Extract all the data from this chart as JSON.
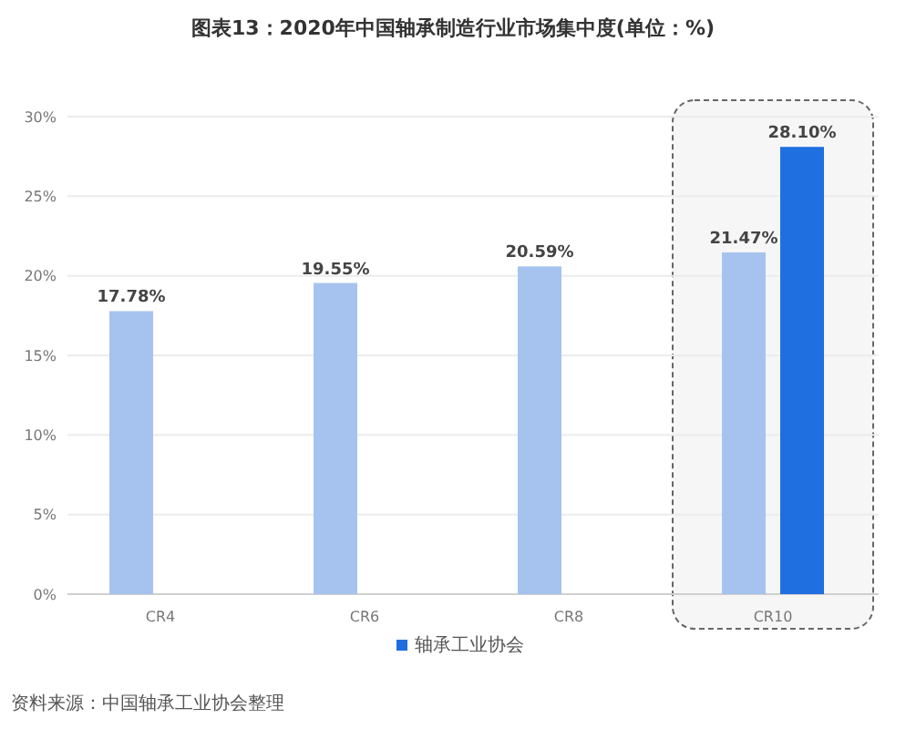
{
  "chart_data": {
    "type": "bar",
    "title": "图表13：2020年中国轴承制造行业市场集中度(单位：%)",
    "categories": [
      "CR4",
      "CR6",
      "CR8",
      "CR10"
    ],
    "series": [
      {
        "color": "#a6c3f0",
        "values": [
          17.78,
          19.55,
          20.59,
          21.47
        ],
        "value_labels": [
          "17.78%",
          "19.55%",
          "20.59%",
          "21.47%"
        ]
      },
      {
        "name": "轴承工业协会",
        "color": "#1f6fe0",
        "values": [
          null,
          null,
          null,
          28.1
        ],
        "value_labels": [
          null,
          null,
          null,
          "28.10%"
        ]
      }
    ],
    "ylim": [
      0,
      30
    ],
    "yticks": [
      {
        "value": 0,
        "label": "0%"
      },
      {
        "value": 5,
        "label": "5%"
      },
      {
        "value": 10,
        "label": "10%"
      },
      {
        "value": 15,
        "label": "15%"
      },
      {
        "value": 20,
        "label": "20%"
      },
      {
        "value": 25,
        "label": "25%"
      },
      {
        "value": 30,
        "label": "30%"
      }
    ],
    "grid": "y",
    "legend": "bottom",
    "bands": [
      {
        "axis": "x",
        "from": "CR10",
        "to": "CR10",
        "color": "#666666"
      }
    ],
    "annotations": [
      "资料来源：中国轴承工业协会整理"
    ]
  }
}
